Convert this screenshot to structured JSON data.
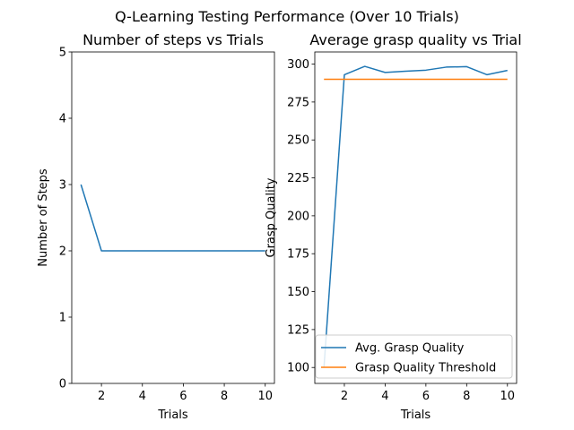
{
  "figure": {
    "suptitle": "Q-Learning Testing Performance (Over 10 Trials)"
  },
  "chart_data": [
    {
      "type": "line",
      "title": "Number of steps vs Trials",
      "xlabel": "Trials",
      "ylabel": "Number of Steps",
      "xlim": [
        0.55,
        10.45
      ],
      "ylim": [
        0,
        5
      ],
      "xticks": [
        2,
        4,
        6,
        8,
        10
      ],
      "yticks": [
        0,
        1,
        2,
        3,
        4,
        5
      ],
      "grid": false,
      "series": [
        {
          "color": "#1f77b4",
          "x": [
            1,
            2,
            3,
            4,
            5,
            6,
            7,
            8,
            9,
            10
          ],
          "values": [
            3,
            2,
            2,
            2,
            2,
            2,
            2,
            2,
            2,
            2
          ]
        }
      ]
    },
    {
      "type": "line",
      "title": "Average grasp quality vs Trial",
      "xlabel": "Trials",
      "ylabel": "Grasp Quality",
      "xlim": [
        0.55,
        10.45
      ],
      "ylim": [
        89.5,
        308
      ],
      "xticks": [
        2,
        4,
        6,
        8,
        10
      ],
      "yticks": [
        100,
        125,
        150,
        175,
        200,
        225,
        250,
        275,
        300
      ],
      "grid": false,
      "legend_position": "lower-right",
      "series": [
        {
          "name": "Avg. Grasp Quality",
          "color": "#1f77b4",
          "x": [
            1,
            2,
            3,
            4,
            5,
            6,
            7,
            8,
            9,
            10
          ],
          "values": [
            100,
            293,
            298.5,
            294.5,
            295.3,
            296,
            298,
            298.3,
            293,
            295.8
          ]
        },
        {
          "name": "Grasp Quality Threshold",
          "color": "#ff7f0e",
          "x": [
            1,
            2,
            3,
            4,
            5,
            6,
            7,
            8,
            9,
            10
          ],
          "values": [
            290,
            290,
            290,
            290,
            290,
            290,
            290,
            290,
            290,
            290
          ]
        }
      ]
    }
  ]
}
